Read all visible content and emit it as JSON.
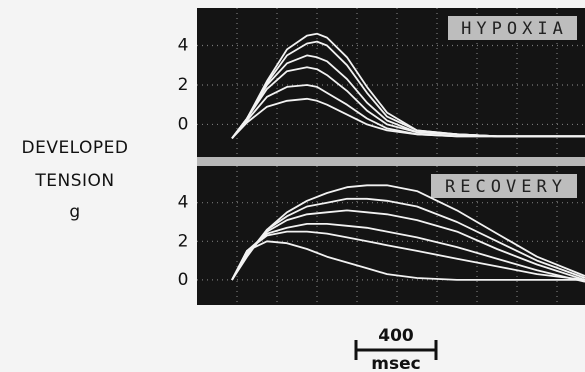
{
  "chart_data": [
    {
      "type": "line",
      "annotation": "HYPOXIA",
      "xlim": [
        0,
        1940
      ],
      "xticks": [
        200,
        400,
        600,
        800,
        1000,
        1200,
        1400,
        1600,
        1800
      ],
      "ylim": [
        -1.7,
        5.9
      ],
      "yticks": [
        0,
        2,
        4
      ],
      "grid": true,
      "x": [
        175,
        250,
        350,
        450,
        550,
        600,
        650,
        750,
        850,
        950,
        1100,
        1300,
        1500,
        1700,
        1940
      ],
      "series": [
        {
          "color": "#f2f2f2",
          "values": [
            -0.7,
            0.3,
            2.2,
            3.8,
            4.5,
            4.6,
            4.4,
            3.4,
            1.9,
            0.6,
            -0.3,
            -0.5,
            -0.6,
            -0.6,
            -0.6
          ]
        },
        {
          "color": "#f2f2f2",
          "values": [
            -0.7,
            0.3,
            2.1,
            3.5,
            4.1,
            4.2,
            4.0,
            3.0,
            1.6,
            0.4,
            -0.3,
            -0.5,
            -0.6,
            -0.6,
            -0.6
          ]
        },
        {
          "color": "#f2f2f2",
          "values": [
            -0.7,
            0.3,
            2.0,
            3.1,
            3.5,
            3.4,
            3.2,
            2.3,
            1.1,
            0.2,
            -0.4,
            -0.5,
            -0.6,
            -0.6,
            -0.6
          ]
        },
        {
          "color": "#f2f2f2",
          "values": [
            -0.7,
            0.3,
            1.8,
            2.7,
            2.9,
            2.8,
            2.5,
            1.7,
            0.7,
            0,
            -0.4,
            -0.5,
            -0.6,
            -0.6,
            -0.6
          ]
        },
        {
          "color": "#f2f2f2",
          "values": [
            -0.7,
            0.2,
            1.4,
            1.9,
            2.0,
            1.9,
            1.6,
            1.0,
            0.3,
            -0.2,
            -0.5,
            -0.6,
            -0.6,
            -0.6,
            -0.6
          ]
        },
        {
          "color": "#f2f2f2",
          "values": [
            -0.7,
            0.1,
            0.9,
            1.2,
            1.3,
            1.2,
            1.0,
            0.5,
            0,
            -0.3,
            -0.5,
            -0.6,
            -0.6,
            -0.6,
            -0.6
          ]
        }
      ]
    },
    {
      "type": "line",
      "annotation": "RECOVERY",
      "xlim": [
        0,
        1940
      ],
      "xticks": [
        200,
        400,
        600,
        800,
        1000,
        1200,
        1400,
        1600,
        1800
      ],
      "ylim": [
        -1.3,
        5.9
      ],
      "yticks": [
        0,
        2,
        4
      ],
      "grid": true,
      "x": [
        175,
        250,
        350,
        450,
        550,
        650,
        750,
        850,
        950,
        1100,
        1300,
        1500,
        1700,
        1940
      ],
      "series": [
        {
          "color": "#f2f2f2",
          "values": [
            0,
            1.2,
            2.6,
            3.5,
            4.1,
            4.5,
            4.8,
            4.9,
            4.9,
            4.6,
            3.6,
            2.4,
            1.2,
            0.2
          ]
        },
        {
          "color": "#f2f2f2",
          "values": [
            0,
            1.3,
            2.6,
            3.3,
            3.8,
            4.0,
            4.2,
            4.2,
            4.1,
            3.8,
            3.0,
            2.0,
            1.0,
            0.1
          ]
        },
        {
          "color": "#f2f2f2",
          "values": [
            0,
            1.4,
            2.5,
            3.1,
            3.4,
            3.5,
            3.6,
            3.5,
            3.4,
            3.1,
            2.5,
            1.6,
            0.8,
            0
          ]
        },
        {
          "color": "#f2f2f2",
          "values": [
            0,
            1.5,
            2.4,
            2.7,
            2.9,
            2.9,
            2.8,
            2.7,
            2.5,
            2.2,
            1.7,
            1.1,
            0.5,
            -0.1
          ]
        },
        {
          "color": "#f2f2f2",
          "values": [
            0,
            1.5,
            2.3,
            2.5,
            2.5,
            2.4,
            2.2,
            2.0,
            1.8,
            1.5,
            1.1,
            0.7,
            0.3,
            0
          ]
        },
        {
          "color": "#f2f2f2",
          "values": [
            0,
            1.5,
            2.0,
            1.9,
            1.6,
            1.2,
            0.9,
            0.6,
            0.3,
            0.1,
            0,
            0,
            0,
            0
          ]
        }
      ]
    }
  ],
  "ylabel": [
    "DEVELOPED",
    "TENSION",
    "g"
  ],
  "scale_bar": {
    "value": 400,
    "unit": "msec"
  }
}
